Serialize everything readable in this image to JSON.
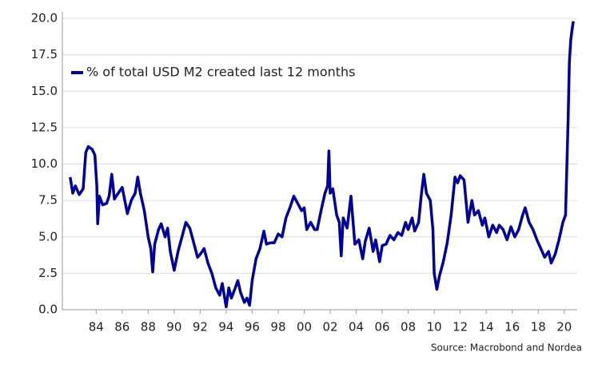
{
  "chart_data": {
    "type": "line",
    "legend": "upper left",
    "grid": true,
    "source": "Source: Macrobond and Nordea",
    "xlim": [
      1981.4,
      2021.0
    ],
    "ylim": [
      0,
      20
    ],
    "yticks": [
      {
        "value": 0,
        "label": "0.0"
      },
      2.5,
      {
        "value": 5,
        "label": "5.0"
      },
      7.5,
      {
        "value": 10,
        "label": "10.0"
      },
      12.5,
      {
        "value": 15,
        "label": "15.0"
      },
      17.5,
      {
        "value": 20,
        "label": "20.0"
      }
    ],
    "xticks": [
      {
        "value": 1984,
        "label": "84"
      },
      {
        "value": 1986,
        "label": "86"
      },
      {
        "value": 1988,
        "label": "88"
      },
      {
        "value": 1990,
        "label": "90"
      },
      {
        "value": 1992,
        "label": "92"
      },
      {
        "value": 1994,
        "label": "94"
      },
      {
        "value": 1996,
        "label": "96"
      },
      {
        "value": 1998,
        "label": "98"
      },
      {
        "value": 2000,
        "label": "00"
      },
      {
        "value": 2002,
        "label": "02"
      },
      {
        "value": 2004,
        "label": "04"
      },
      {
        "value": 2006,
        "label": "06"
      },
      {
        "value": 2008,
        "label": "08"
      },
      {
        "value": 2010,
        "label": "10"
      },
      {
        "value": 2012,
        "label": "12"
      },
      {
        "value": 2014,
        "label": "14"
      },
      {
        "value": 2016,
        "label": "16"
      },
      {
        "value": 2018,
        "label": "18"
      },
      {
        "value": 2020,
        "label": "20"
      }
    ],
    "x": [
      1982.0,
      1982.2,
      1982.4,
      1982.7,
      1983.0,
      1983.2,
      1983.4,
      1983.7,
      1983.9,
      1984.05,
      1984.12,
      1984.25,
      1984.5,
      1984.8,
      1985.0,
      1985.2,
      1985.4,
      1985.7,
      1986.0,
      1986.2,
      1986.4,
      1986.7,
      1987.0,
      1987.2,
      1987.4,
      1987.7,
      1988.0,
      1988.2,
      1988.35,
      1988.5,
      1988.8,
      1989.0,
      1989.3,
      1989.5,
      1989.7,
      1990.0,
      1990.3,
      1990.6,
      1990.9,
      1991.2,
      1991.5,
      1991.8,
      1992.0,
      1992.3,
      1992.6,
      1992.9,
      1993.2,
      1993.5,
      1993.7,
      1994.0,
      1994.2,
      1994.4,
      1994.7,
      1994.9,
      1995.1,
      1995.4,
      1995.6,
      1995.8,
      1996.0,
      1996.3,
      1996.6,
      1996.9,
      1997.1,
      1997.4,
      1997.7,
      1998.0,
      1998.3,
      1998.6,
      1998.9,
      1999.2,
      1999.5,
      1999.8,
      2000.0,
      2000.2,
      2000.5,
      2000.8,
      2001.0,
      2001.3,
      2001.6,
      2001.8,
      2001.9,
      2002.0,
      2002.2,
      2002.5,
      2002.7,
      2002.85,
      2003.0,
      2003.3,
      2003.6,
      2003.9,
      2004.2,
      2004.5,
      2004.7,
      2005.0,
      2005.3,
      2005.5,
      2005.8,
      2006.0,
      2006.3,
      2006.6,
      2006.9,
      2007.2,
      2007.5,
      2007.8,
      2008.0,
      2008.3,
      2008.5,
      2008.8,
      2009.0,
      2009.2,
      2009.4,
      2009.7,
      2009.9,
      2010.0,
      2010.2,
      2010.4,
      2010.7,
      2011.0,
      2011.3,
      2011.6,
      2011.8,
      2012.0,
      2012.3,
      2012.6,
      2012.9,
      2013.1,
      2013.4,
      2013.7,
      2013.9,
      2014.2,
      2014.5,
      2014.8,
      2015.0,
      2015.3,
      2015.6,
      2015.9,
      2016.2,
      2016.5,
      2016.8,
      2017.0,
      2017.3,
      2017.6,
      2017.9,
      2018.2,
      2018.5,
      2018.8,
      2019.0,
      2019.3,
      2019.6,
      2019.9,
      2020.1,
      2020.3,
      2020.4,
      2020.5,
      2020.6,
      2020.7
    ],
    "series": [
      {
        "name": "% of total USD M2 created last 12 months",
        "color": "#00009a",
        "values": [
          9.1,
          8.0,
          8.5,
          7.9,
          8.3,
          10.8,
          11.2,
          11.0,
          10.6,
          8.5,
          5.9,
          7.8,
          7.2,
          7.3,
          7.8,
          9.3,
          7.6,
          8.0,
          8.4,
          7.5,
          6.6,
          7.5,
          8.0,
          9.1,
          8.0,
          6.8,
          5.0,
          4.2,
          2.6,
          4.5,
          5.5,
          5.9,
          5.0,
          5.6,
          4.0,
          2.7,
          4.0,
          5.0,
          6.0,
          5.6,
          4.6,
          3.6,
          3.8,
          4.2,
          3.2,
          2.5,
          1.5,
          1.0,
          1.8,
          0.2,
          1.5,
          0.8,
          1.5,
          2.0,
          1.2,
          0.5,
          0.8,
          0.3,
          2.0,
          3.5,
          4.2,
          5.4,
          4.5,
          4.6,
          4.6,
          5.2,
          5.0,
          6.3,
          7.0,
          7.8,
          7.3,
          6.8,
          7.0,
          5.5,
          6.0,
          5.5,
          5.5,
          6.8,
          8.0,
          8.5,
          10.9,
          8.0,
          8.3,
          6.5,
          6.0,
          3.7,
          6.3,
          5.6,
          7.8,
          4.5,
          4.8,
          3.5,
          4.7,
          5.6,
          4.0,
          4.8,
          3.3,
          4.4,
          4.5,
          5.1,
          4.8,
          5.3,
          5.1,
          6.0,
          5.5,
          6.3,
          5.4,
          6.0,
          7.8,
          9.3,
          8.0,
          7.5,
          5.5,
          2.5,
          1.4,
          2.3,
          3.3,
          4.6,
          6.5,
          9.1,
          8.7,
          9.2,
          8.9,
          6.0,
          7.5,
          6.5,
          6.8,
          5.8,
          6.3,
          5.0,
          5.8,
          5.3,
          5.8,
          5.5,
          4.8,
          5.7,
          5.0,
          5.5,
          6.5,
          7.0,
          6.0,
          5.5,
          4.8,
          4.2,
          3.6,
          4.0,
          3.2,
          3.8,
          4.8,
          6.0,
          6.5,
          13.0,
          17.0,
          18.5,
          19.2,
          19.8
        ]
      }
    ]
  }
}
